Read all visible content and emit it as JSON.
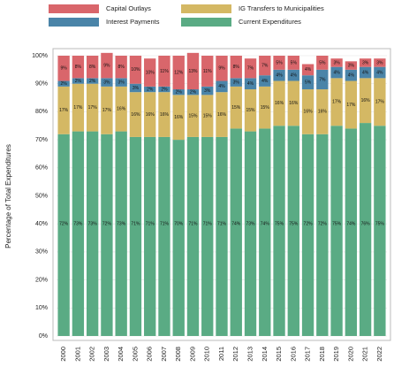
{
  "chart_data": {
    "type": "stacked_bar",
    "y_label": "Percentage of Total Expenditures",
    "categories": [
      "2000",
      "2001",
      "2002",
      "2003",
      "2004",
      "2005",
      "2006",
      "2007",
      "2008",
      "2009",
      "2010",
      "2011",
      "2012",
      "2013",
      "2014",
      "2015",
      "2016",
      "2017",
      "2018",
      "2019",
      "2020",
      "2021",
      "2022"
    ],
    "series": [
      {
        "name": "Current Expenditures",
        "color": "#5aab84",
        "values": [
          72,
          73,
          73,
          72,
          73,
          71,
          71,
          71,
          70,
          71,
          71,
          71,
          74,
          73,
          74,
          75,
          75,
          72,
          72,
          75,
          74,
          76,
          75
        ],
        "value_labels": [
          "72%",
          "73%",
          "73%",
          "72%",
          "73%",
          "71%",
          "71%",
          "71%",
          "70%",
          "71%",
          "71%",
          "71%",
          "74%",
          "73%",
          "74%",
          "75%",
          "75%",
          "72%",
          "72%",
          "75%",
          "74%",
          "76%",
          "75%"
        ]
      },
      {
        "name": "IG Transfers to Municipalities",
        "color": "#d4b864",
        "values": [
          17,
          17,
          17,
          17,
          16,
          16,
          16,
          16,
          16,
          15,
          15,
          16,
          15,
          15,
          15,
          16,
          16,
          16,
          16,
          17,
          17,
          16,
          17
        ],
        "value_labels": [
          "17%",
          "17%",
          "17%",
          "17%",
          "16%",
          "16%",
          "16%",
          "16%",
          "16%",
          "15%",
          "15%",
          "16%",
          "15%",
          "15%",
          "15%",
          "16%",
          "16%",
          "16%",
          "16%",
          "17%",
          "17%",
          "16%",
          "17%"
        ]
      },
      {
        "name": "Interest Payments",
        "color": "#4a84a8",
        "values": [
          2,
          2,
          2,
          3,
          3,
          3,
          2,
          2,
          2,
          2,
          3,
          4,
          3,
          4,
          4,
          4,
          4,
          5,
          7,
          4,
          4,
          4,
          4
        ],
        "value_labels": [
          "2%",
          "2%",
          "2%",
          "3%",
          "3%",
          "3%",
          "2%",
          "2%",
          "2%",
          "2%",
          "3%",
          "4%",
          "3%",
          "4%",
          "4%",
          "4%",
          "4%",
          "5%",
          "7%",
          "4%",
          "4%",
          "4%",
          "4%"
        ]
      },
      {
        "name": "Capital Outlays",
        "color": "#d9666b",
        "values": [
          9,
          8,
          8,
          9,
          8,
          10,
          10,
          11,
          12,
          13,
          11,
          9,
          8,
          7,
          7,
          5,
          5,
          4,
          5,
          3,
          3,
          3,
          3
        ],
        "value_labels": [
          "9%",
          "8%",
          "8%",
          "9%",
          "8%",
          "10%",
          "10%",
          "11%",
          "12%",
          "13%",
          "11%",
          "9%",
          "8%",
          "7%",
          "7%",
          "5%",
          "5%",
          "4%",
          "5%",
          "3%",
          "3%",
          "3%",
          "3%"
        ]
      }
    ],
    "ylim": [
      0,
      100
    ],
    "yticks": [
      {
        "value": 0,
        "label": "0%"
      },
      {
        "value": 10,
        "label": "10%"
      },
      {
        "value": 20,
        "label": "20%"
      },
      {
        "value": 30,
        "label": "30%"
      },
      {
        "value": 40,
        "label": "40%"
      },
      {
        "value": 50,
        "label": "50%"
      },
      {
        "value": 60,
        "label": "60%"
      },
      {
        "value": 70,
        "label": "70%"
      },
      {
        "value": 80,
        "label": "80%"
      },
      {
        "value": 90,
        "label": "90%"
      },
      {
        "value": 100,
        "label": "100%"
      }
    ],
    "grid": true
  }
}
